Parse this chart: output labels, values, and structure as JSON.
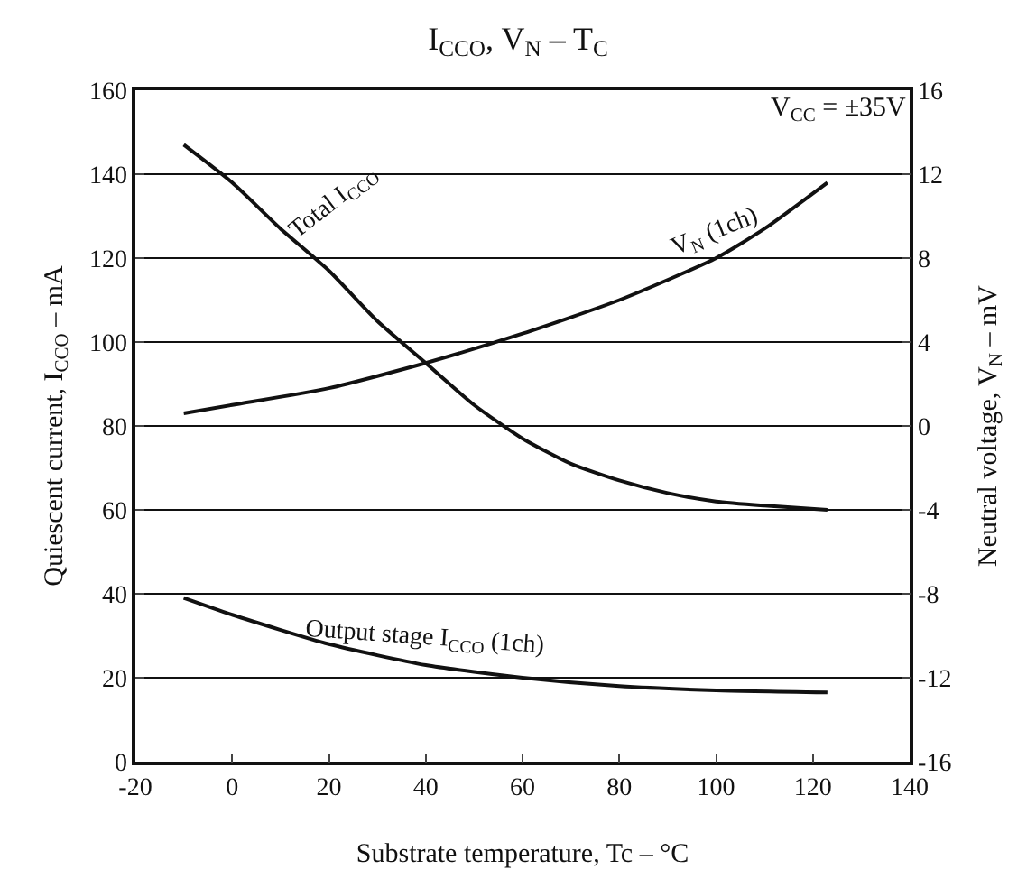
{
  "chart_data": {
    "type": "line",
    "title": "I$_{CCO}$, V$_{N}$ – T$_{C}$",
    "xlabel": "Substrate temperature, Tc – °C",
    "ylabel": "Quiescent current, I$_{CCO}$ – mA",
    "y2label": "Neutral voltage, V$_{N}$ – mV",
    "annotations": [
      "V$_{CC}$ = ±35V"
    ],
    "series": [
      {
        "name": "Total I$_{CCO}$",
        "color": "#111111",
        "x": [
          -10,
          0,
          10,
          20,
          30,
          40,
          50,
          60,
          70,
          80,
          90,
          100,
          110,
          123
        ],
        "values": [
          147,
          138,
          127,
          117,
          105,
          95,
          85,
          77,
          71,
          67,
          64,
          62,
          61,
          60
        ]
      },
      {
        "name": "V$_{N}$ (1ch)",
        "color": "#111111",
        "axis": "y2",
        "x": [
          -10,
          0,
          20,
          40,
          60,
          80,
          100,
          110,
          123
        ],
        "values": [
          0.6,
          1,
          1.8,
          3,
          4.4,
          6,
          8,
          9.4,
          11.6
        ]
      },
      {
        "name": "Output stage I$_{CCO}$ (1ch)",
        "color": "#111111",
        "x": [
          -10,
          0,
          20,
          40,
          60,
          80,
          100,
          123
        ],
        "values": [
          39,
          35,
          28,
          23,
          20,
          18,
          17,
          16.5
        ]
      }
    ],
    "xlim": [
      -20,
      140
    ],
    "xticks": [
      -20,
      0,
      20,
      40,
      60,
      80,
      100,
      120,
      140
    ],
    "ylim": [
      0,
      160
    ],
    "yticks": [
      0,
      20,
      40,
      60,
      80,
      100,
      120,
      140,
      160
    ],
    "y2lim": [
      -16,
      16
    ],
    "y2ticks": [
      -16,
      -12,
      -8,
      -4,
      0,
      4,
      8,
      12,
      16
    ],
    "grid": "y",
    "legend": false,
    "marker": "none",
    "line_style": "solid"
  }
}
